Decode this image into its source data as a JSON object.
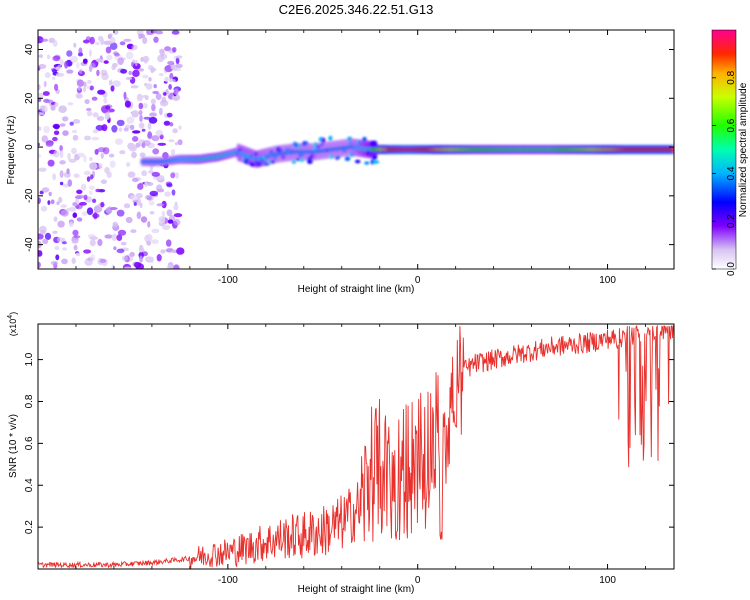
{
  "chart_data": [
    {
      "type": "heatmap",
      "title": "C2E6.2025.346.22.51.G13",
      "xlabel": "Height of straight line (km)",
      "ylabel": "Frequency (Hz)",
      "xlim": [
        -200,
        135
      ],
      "ylim": [
        -50,
        48
      ],
      "xticks": [
        -100,
        0,
        100
      ],
      "xtick_labels": [
        "-100",
        "0",
        "100"
      ],
      "yticks": [
        -40,
        -20,
        0,
        20,
        40
      ],
      "ytick_labels": [
        "-40",
        "-20",
        "0",
        "20",
        "40"
      ],
      "colorbar": {
        "label": "Normalized spectral amplitude",
        "range": [
          0,
          1
        ],
        "ticks": [
          0,
          0.2,
          0.4,
          0.6,
          0.8
        ],
        "tick_labels": [
          "0.0",
          "0.2",
          "0.4",
          "0.6",
          "0.8"
        ]
      },
      "ridge": {
        "x": [
          -145,
          -135,
          -125,
          -115,
          -105,
          -95,
          -85,
          -75,
          -65,
          -55,
          -45,
          -35,
          -25,
          -15,
          -5,
          5,
          15,
          30,
          50,
          70,
          90,
          110,
          135
        ],
        "freq": [
          -6,
          -6,
          -5,
          -5,
          -4,
          -2,
          -5,
          -3,
          -2,
          -2,
          -1,
          0,
          -1,
          -1,
          -1,
          -1,
          -1,
          -1,
          -1,
          -1,
          -1,
          -1,
          -1
        ],
        "amplitude": [
          0.35,
          0.35,
          0.4,
          0.45,
          0.45,
          0.4,
          0.4,
          0.35,
          0.35,
          0.35,
          0.35,
          0.35,
          0.5,
          0.9,
          0.95,
          0.9,
          0.75,
          0.6,
          0.55,
          0.55,
          0.7,
          0.9,
          0.9
        ]
      },
      "noise_region": {
        "x_from": -200,
        "x_to": -125,
        "amplitude": 0.1
      }
    },
    {
      "type": "line",
      "title": "",
      "xlabel": "Height of straight line (km)",
      "ylabel": "SNR (10 * v/v)",
      "y_multiplier_label": "(x10",
      "y_multiplier_exp": "4",
      "y_multiplier_close": ")",
      "xlim": [
        -200,
        135
      ],
      "ylim": [
        0,
        1.17
      ],
      "xticks": [
        -100,
        0,
        100
      ],
      "xtick_labels": [
        "-100",
        "0",
        "100"
      ],
      "yticks": [
        0.2,
        0.4,
        0.6,
        0.8,
        1.0
      ],
      "ytick_labels": [
        "0.2",
        "0.4",
        "0.6",
        "0.8",
        "1.0"
      ],
      "series": [
        {
          "name": "SNR",
          "color": "#e8302c",
          "x": [
            -200,
            -160,
            -140,
            -120,
            -110,
            -100,
            -90,
            -80,
            -70,
            -60,
            -50,
            -40,
            -30,
            -25,
            -20,
            -15,
            -10,
            -5,
            0,
            5,
            10,
            12,
            15,
            20,
            25,
            30,
            40,
            50,
            60,
            70,
            80,
            90,
            100,
            102,
            104,
            106,
            110,
            115,
            120,
            125,
            130,
            135
          ],
          "y": [
            0.02,
            0.02,
            0.03,
            0.05,
            0.07,
            0.08,
            0.1,
            0.13,
            0.15,
            0.16,
            0.18,
            0.22,
            0.3,
            0.45,
            0.5,
            0.42,
            0.45,
            0.5,
            0.55,
            0.6,
            0.65,
            0.75,
            0.7,
            0.88,
            0.95,
            0.98,
            1.0,
            1.02,
            1.04,
            1.06,
            1.07,
            1.08,
            1.1,
            1.1,
            1.1,
            1.1,
            1.12,
            1.12,
            1.13,
            1.14,
            1.14,
            1.15
          ]
        }
      ]
    }
  ]
}
